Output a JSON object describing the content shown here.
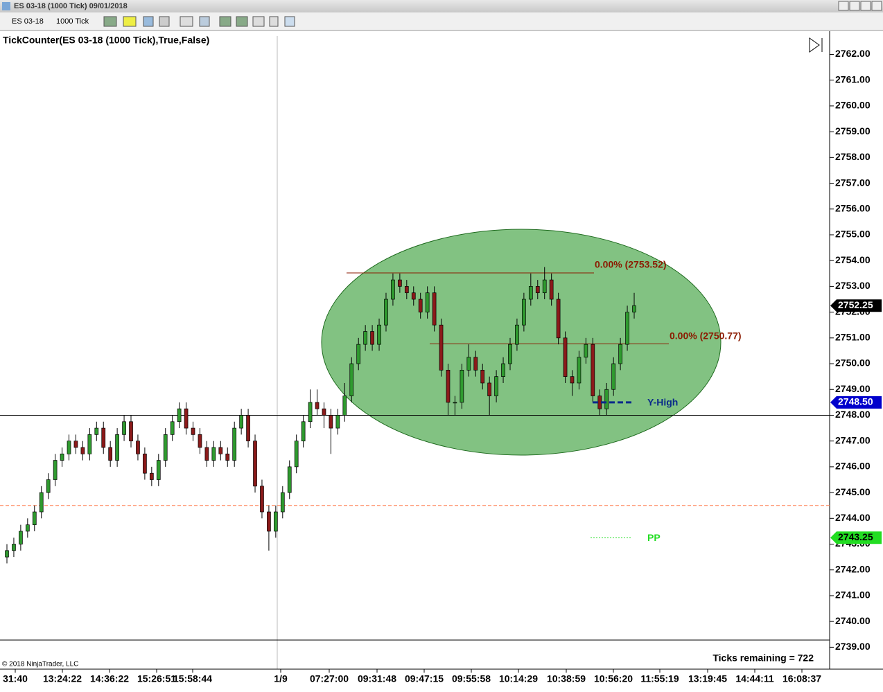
{
  "window": {
    "title": "ES 03-18 (1000 Tick)  09/01/2018",
    "toolbar": {
      "instrument": "ES 03-18",
      "interval": "1000 Tick"
    }
  },
  "chart_data": {
    "type": "candlestick",
    "title": "TickCounter(ES 03-18 (1000 Tick),True,False)",
    "up_color": "#2f9a2f",
    "down_color": "#8b1a1a",
    "open": [
      2742.5,
      2742.75,
      2743.0,
      2743.5,
      2743.75,
      2744.25,
      2745.0,
      2745.5,
      2746.25,
      2746.5,
      2747.0,
      2746.75,
      2746.5,
      2747.25,
      2747.5,
      2746.75,
      2746.25,
      2747.25,
      2747.75,
      2747.0,
      2746.5,
      2745.75,
      2745.5,
      2746.25,
      2747.25,
      2747.75,
      2748.25,
      2747.5,
      2747.25,
      2746.75,
      2746.25,
      2746.75,
      2746.5,
      2746.25,
      2747.5,
      2748.0,
      2747.0,
      2745.25,
      2744.25,
      2743.5,
      2744.25,
      2745.0,
      2746.0,
      2747.0,
      2747.75,
      2748.5,
      2748.25,
      2748.0,
      2747.5,
      2748.0,
      2748.75,
      2750.0,
      2750.75,
      2751.25,
      2750.75,
      2751.5,
      2752.5,
      2753.25,
      2753.0,
      2752.75,
      2752.5,
      2752.0,
      2752.75,
      2751.5,
      2749.75,
      2748.5,
      2748.5,
      2749.75,
      2750.25,
      2749.75,
      2749.25,
      2748.75,
      2749.5,
      2750.0,
      2750.75,
      2751.5,
      2752.5,
      2753.0,
      2752.75,
      2753.25,
      2752.5,
      2751.0,
      2749.5,
      2749.25,
      2750.25,
      2750.75,
      2748.75,
      2748.25,
      2749.0,
      2750.0,
      2750.75,
      2752.0
    ],
    "high": [
      2743.0,
      2743.25,
      2743.75,
      2744.0,
      2744.5,
      2745.25,
      2745.75,
      2746.5,
      2746.75,
      2747.25,
      2747.25,
      2747.0,
      2747.5,
      2747.75,
      2747.75,
      2747.0,
      2747.5,
      2748.0,
      2748.0,
      2747.25,
      2746.75,
      2746.0,
      2746.5,
      2747.5,
      2748.0,
      2748.5,
      2748.5,
      2747.75,
      2747.5,
      2747.0,
      2747.0,
      2747.0,
      2746.75,
      2747.75,
      2748.25,
      2748.25,
      2747.25,
      2745.5,
      2744.5,
      2744.5,
      2745.25,
      2746.25,
      2747.25,
      2748.0,
      2749.0,
      2749.0,
      2748.5,
      2748.25,
      2748.25,
      2749.25,
      2750.25,
      2751.0,
      2751.5,
      2751.5,
      2751.75,
      2752.75,
      2753.5,
      2753.5,
      2753.25,
      2753.0,
      2752.75,
      2753.0,
      2753.0,
      2751.75,
      2750.0,
      2748.75,
      2750.0,
      2750.75,
      2750.5,
      2750.0,
      2749.5,
      2749.75,
      2750.25,
      2751.0,
      2751.75,
      2752.75,
      2753.5,
      2753.25,
      2753.75,
      2753.5,
      2752.75,
      2751.25,
      2749.75,
      2750.5,
      2751.0,
      2751.0,
      2749.0,
      2749.25,
      2750.25,
      2751.0,
      2752.25,
      2752.75
    ],
    "low": [
      2742.25,
      2742.5,
      2742.75,
      2743.25,
      2743.5,
      2744.0,
      2744.75,
      2745.25,
      2746.0,
      2746.25,
      2746.5,
      2746.25,
      2746.25,
      2747.0,
      2746.5,
      2746.0,
      2746.0,
      2747.0,
      2746.75,
      2746.25,
      2745.5,
      2745.25,
      2745.25,
      2746.0,
      2747.0,
      2747.5,
      2747.25,
      2747.0,
      2746.5,
      2746.0,
      2746.0,
      2746.25,
      2746.0,
      2746.0,
      2747.25,
      2746.75,
      2745.0,
      2744.0,
      2742.75,
      2743.25,
      2744.0,
      2744.75,
      2745.75,
      2746.75,
      2747.5,
      2748.0,
      2747.5,
      2746.5,
      2747.25,
      2747.75,
      2748.5,
      2749.75,
      2750.5,
      2750.5,
      2750.5,
      2751.25,
      2752.25,
      2752.75,
      2752.5,
      2752.25,
      2751.75,
      2751.75,
      2751.25,
      2749.5,
      2748.0,
      2748.0,
      2748.25,
      2749.5,
      2749.5,
      2749.0,
      2748.0,
      2748.5,
      2749.25,
      2749.75,
      2750.5,
      2751.25,
      2752.25,
      2752.5,
      2752.5,
      2752.25,
      2750.75,
      2749.25,
      2748.75,
      2749.0,
      2750.0,
      2748.5,
      2748.0,
      2748.0,
      2748.75,
      2749.75,
      2750.5,
      2751.75
    ],
    "close": [
      2742.75,
      2743.0,
      2743.5,
      2743.75,
      2744.25,
      2745.0,
      2745.5,
      2746.25,
      2746.5,
      2747.0,
      2746.75,
      2746.5,
      2747.25,
      2747.5,
      2746.75,
      2746.25,
      2747.25,
      2747.75,
      2747.0,
      2746.5,
      2745.75,
      2745.5,
      2746.25,
      2747.25,
      2747.75,
      2748.25,
      2747.5,
      2747.25,
      2746.75,
      2746.25,
      2746.75,
      2746.5,
      2746.25,
      2747.5,
      2748.0,
      2747.0,
      2745.25,
      2744.25,
      2743.5,
      2744.25,
      2745.0,
      2746.0,
      2747.0,
      2747.75,
      2748.5,
      2748.25,
      2748.0,
      2747.5,
      2748.0,
      2748.75,
      2750.0,
      2750.75,
      2751.25,
      2750.75,
      2751.5,
      2752.5,
      2753.25,
      2753.0,
      2752.75,
      2752.5,
      2752.0,
      2752.75,
      2751.5,
      2749.75,
      2748.5,
      2748.5,
      2749.75,
      2750.25,
      2749.75,
      2749.25,
      2748.75,
      2749.5,
      2750.0,
      2750.75,
      2751.5,
      2752.5,
      2753.0,
      2752.75,
      2753.25,
      2752.5,
      2751.0,
      2749.5,
      2749.25,
      2750.25,
      2750.75,
      2748.75,
      2748.25,
      2749.0,
      2750.0,
      2750.75,
      2752.0,
      2752.25
    ],
    "ylim": [
      2738.15,
      2762.9
    ],
    "yticks": [
      {
        "value": 2739,
        "label": "2739.00"
      },
      {
        "value": 2740,
        "label": "2740.00"
      },
      {
        "value": 2741,
        "label": "2741.00"
      },
      {
        "value": 2742,
        "label": "2742.00"
      },
      {
        "value": 2743,
        "label": "2743.00"
      },
      {
        "value": 2744,
        "label": "2744.00"
      },
      {
        "value": 2745,
        "label": "2745.00"
      },
      {
        "value": 2746,
        "label": "2746.00"
      },
      {
        "value": 2747,
        "label": "2747.00"
      },
      {
        "value": 2748,
        "label": "2748.00"
      },
      {
        "value": 2749,
        "label": "2749.00"
      },
      {
        "value": 2750,
        "label": "2750.00"
      },
      {
        "value": 2751,
        "label": "2751.00"
      },
      {
        "value": 2752,
        "label": "2752.00"
      },
      {
        "value": 2753,
        "label": "2753.00"
      },
      {
        "value": 2754,
        "label": "2754.00"
      },
      {
        "value": 2755,
        "label": "2755.00"
      },
      {
        "value": 2756,
        "label": "2756.00"
      },
      {
        "value": 2757,
        "label": "2757.00"
      },
      {
        "value": 2758,
        "label": "2758.00"
      },
      {
        "value": 2759,
        "label": "2759.00"
      },
      {
        "value": 2760,
        "label": "2760.00"
      },
      {
        "value": 2761,
        "label": "2761.00"
      },
      {
        "value": 2762,
        "label": "2762.00"
      }
    ],
    "x_labels": [
      "31:40",
      "13:24:22",
      "14:36:22",
      "15:26:51",
      "15:58:44",
      "1/9",
      "07:27:00",
      "09:31:48",
      "09:47:15",
      "09:55:58",
      "10:14:29",
      "10:38:59",
      "10:56:20",
      "11:55:19",
      "13:19:45",
      "14:44:11",
      "16:08:37"
    ],
    "hlines": [
      {
        "value": 2748.0,
        "color": "#000000"
      },
      {
        "value": 2744.5,
        "color": "#ff7f50",
        "dash": true
      }
    ],
    "fib_levels": [
      {
        "value": 2753.52,
        "label": "0.00% (2753.52)",
        "color": "#8b1a00"
      },
      {
        "value": 2750.77,
        "label": "0.00% (2750.77)",
        "color": "#8b1a00"
      }
    ],
    "levels": [
      {
        "value": 2748.5,
        "label": "Y-High",
        "color": "#0a2a8a"
      },
      {
        "value": 2743.25,
        "label": "PP",
        "color": "#22dd22"
      }
    ],
    "price_markers": [
      {
        "value": 2752.25,
        "label": "2752.25",
        "color": "#000000"
      },
      {
        "value": 2748.5,
        "label": "2748.50",
        "color": "#0000cc"
      },
      {
        "value": 2743.25,
        "label": "2743.25",
        "color": "#22dd22"
      }
    ],
    "ticks_remaining": "Ticks remaining = 722",
    "copyright": "© 2018 NinjaTrader, LLC"
  }
}
